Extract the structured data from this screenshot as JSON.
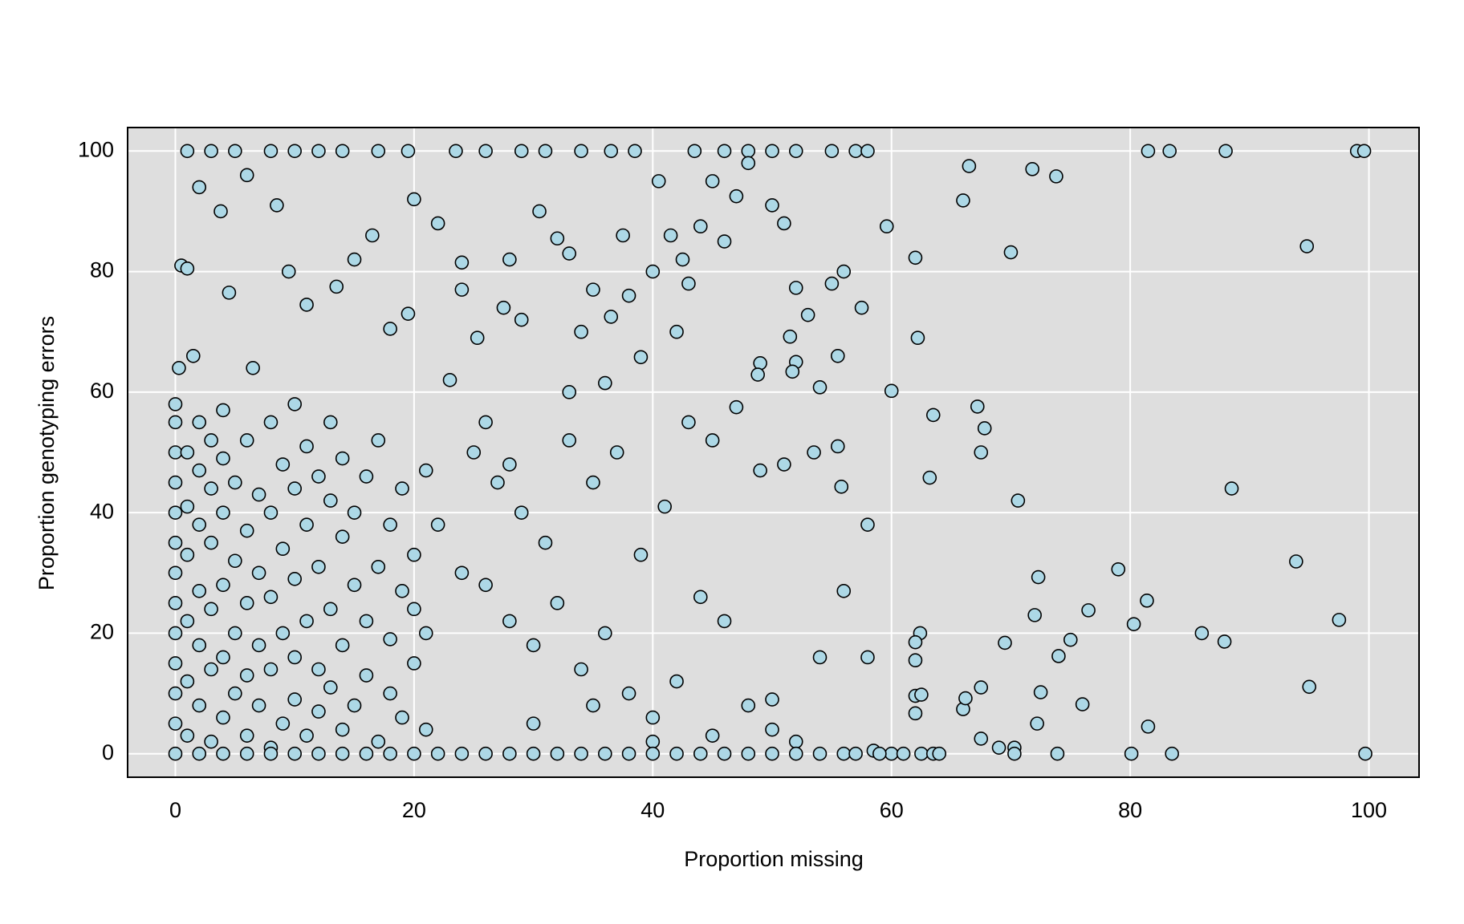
{
  "chart_data": {
    "type": "scatter",
    "xlabel": "Proportion missing",
    "ylabel": "Proportion genotyping errors",
    "xlim": [
      -4,
      104.2
    ],
    "ylim": [
      -3.9,
      103.9
    ],
    "xticks": [
      0,
      20,
      40,
      60,
      80,
      100
    ],
    "yticks": [
      0,
      20,
      40,
      60,
      80,
      100
    ],
    "grid": true,
    "color": "#add8e6",
    "x": [
      81.5,
      83.3,
      88,
      99,
      99.6,
      66.5,
      71.8,
      73.8,
      66,
      70,
      94.8,
      62,
      59.6,
      62.2,
      60,
      63.5,
      67.2,
      67.5,
      67.8,
      63.2,
      70.6,
      88.5,
      58,
      55.8,
      93.9,
      79,
      72.3,
      81.4,
      76.5,
      80.3,
      86,
      97.5,
      72,
      62.4,
      62,
      69.5,
      75,
      74,
      87.9,
      62,
      67.5,
      72.5,
      95,
      76,
      62,
      62.5,
      66,
      62,
      66.2,
      72.2,
      81.5,
      67.5,
      69,
      70.3,
      70.3,
      73.9,
      80.1,
      83.5,
      99.7,
      60,
      61,
      62.5,
      63.5,
      64,
      58.5,
      59,
      1,
      3,
      5,
      8,
      10,
      12,
      14,
      17,
      19.5,
      23.5,
      26,
      29,
      31,
      34,
      36.5,
      38.5,
      43.5,
      46,
      48,
      50,
      52,
      55,
      57,
      58,
      2,
      3.8,
      6,
      8.5,
      9.5,
      11,
      13.5,
      15,
      16.5,
      18,
      19.5,
      20,
      22,
      24,
      24,
      25.3,
      27.5,
      28,
      29,
      30.5,
      32,
      33,
      34,
      35,
      36.5,
      37.5,
      38,
      39,
      40,
      40.5,
      41.5,
      42.5,
      42,
      43,
      44,
      45,
      46,
      47,
      48,
      49,
      50,
      51,
      51.5,
      52,
      53,
      54,
      55,
      56,
      57.5,
      55.5,
      52,
      51.7,
      48.8,
      0.3,
      0.5,
      1,
      1.5,
      4.5,
      6.5,
      22,
      24,
      26,
      28,
      30,
      32,
      34,
      36,
      38,
      40,
      42,
      44,
      46,
      48,
      50,
      52,
      54,
      56,
      58,
      25,
      27,
      29,
      31,
      33,
      35,
      37,
      39,
      41,
      43,
      45,
      47,
      49,
      51,
      53.5,
      55.5,
      30,
      35,
      40,
      45,
      50,
      33,
      36,
      23,
      26,
      28,
      0,
      0,
      0,
      0,
      0,
      0,
      0,
      0,
      0,
      0,
      0,
      0,
      0,
      1,
      1,
      1,
      1,
      1,
      1,
      2,
      2,
      2,
      2,
      2,
      2,
      3,
      3,
      3,
      3,
      3,
      3,
      4,
      4,
      4,
      4,
      4,
      4,
      5,
      5,
      5,
      5,
      6,
      6,
      6,
      6,
      6,
      7,
      7,
      7,
      7,
      8,
      8,
      8,
      8,
      8,
      9,
      9,
      9,
      9,
      10,
      10,
      10,
      10,
      10,
      11,
      11,
      11,
      11,
      12,
      12,
      12,
      12,
      13,
      13,
      13,
      13,
      14,
      14,
      14,
      14,
      15,
      15,
      15,
      16,
      16,
      16,
      17,
      17,
      17,
      18,
      18,
      18,
      19,
      19,
      19,
      20,
      20,
      20,
      21,
      21,
      21,
      2,
      4,
      6,
      8,
      10,
      12,
      14,
      16,
      18,
      20,
      22,
      24,
      26,
      28,
      30,
      32,
      34,
      36,
      38,
      40,
      42,
      44,
      46,
      48,
      50,
      52,
      54,
      56,
      57
    ],
    "values": [
      100,
      100,
      100,
      100,
      100,
      97.5,
      97,
      95.8,
      91.8,
      83.2,
      84.2,
      82.3,
      87.5,
      69,
      60.2,
      56.2,
      57.6,
      50,
      54,
      45.8,
      42,
      44,
      38,
      44.3,
      31.9,
      30.6,
      29.3,
      25.4,
      23.8,
      21.5,
      20,
      22.2,
      23,
      20,
      18.5,
      18.4,
      18.9,
      16.2,
      18.6,
      15.5,
      11,
      10.2,
      11.1,
      8.2,
      9.6,
      9.8,
      7.4,
      6.7,
      9.2,
      5,
      4.5,
      2.5,
      1,
      1,
      0,
      0,
      0,
      0,
      0,
      0,
      0,
      0,
      0,
      0,
      0.5,
      0,
      100,
      100,
      100,
      100,
      100,
      100,
      100,
      100,
      100,
      100,
      100,
      100,
      100,
      100,
      100,
      100,
      100,
      100,
      100,
      100,
      100,
      100,
      100,
      100,
      94,
      90,
      96,
      91,
      80,
      74.5,
      77.5,
      82,
      86,
      70.5,
      73,
      92,
      88,
      77,
      81.5,
      69,
      74,
      82,
      72,
      90,
      85.5,
      83,
      70,
      77,
      72.5,
      86,
      76,
      65.8,
      80,
      95,
      86,
      82,
      70,
      78,
      87.5,
      95,
      85,
      92.5,
      98,
      64.8,
      91,
      88,
      69.2,
      77.3,
      72.8,
      60.8,
      78,
      80,
      74,
      66,
      65,
      63.4,
      62.9,
      64,
      81,
      80.5,
      66,
      76.5,
      64,
      38,
      30,
      28,
      22,
      18,
      25,
      14,
      20,
      10,
      6,
      12,
      26,
      22,
      8,
      4,
      2,
      16,
      27,
      16,
      50,
      45,
      40,
      35,
      52,
      45,
      50,
      33,
      41,
      55,
      52,
      57.5,
      47,
      48,
      50,
      51,
      5,
      8,
      2,
      3,
      9,
      60,
      61.5,
      62,
      55,
      48,
      0,
      5,
      10,
      15,
      20,
      25,
      30,
      35,
      40,
      45,
      50,
      55,
      58,
      3,
      12,
      22,
      33,
      41,
      50,
      8,
      18,
      27,
      38,
      47,
      55,
      2,
      14,
      24,
      35,
      44,
      52,
      6,
      16,
      28,
      40,
      49,
      57,
      10,
      20,
      32,
      45,
      3,
      13,
      25,
      37,
      52,
      8,
      18,
      30,
      43,
      1,
      14,
      26,
      40,
      55,
      5,
      20,
      34,
      48,
      9,
      16,
      29,
      44,
      58,
      3,
      22,
      38,
      51,
      7,
      14,
      31,
      46,
      11,
      24,
      42,
      55,
      4,
      18,
      36,
      49,
      8,
      28,
      40,
      13,
      22,
      46,
      2,
      31,
      52,
      10,
      19,
      38,
      6,
      27,
      44,
      15,
      24,
      33,
      4,
      20,
      47,
      0,
      0,
      0,
      0,
      0,
      0,
      0,
      0,
      0,
      0,
      0,
      0,
      0,
      0,
      0,
      0,
      0,
      0,
      0,
      0,
      0,
      0,
      0,
      0,
      0,
      0,
      0,
      0,
      0
    ]
  }
}
